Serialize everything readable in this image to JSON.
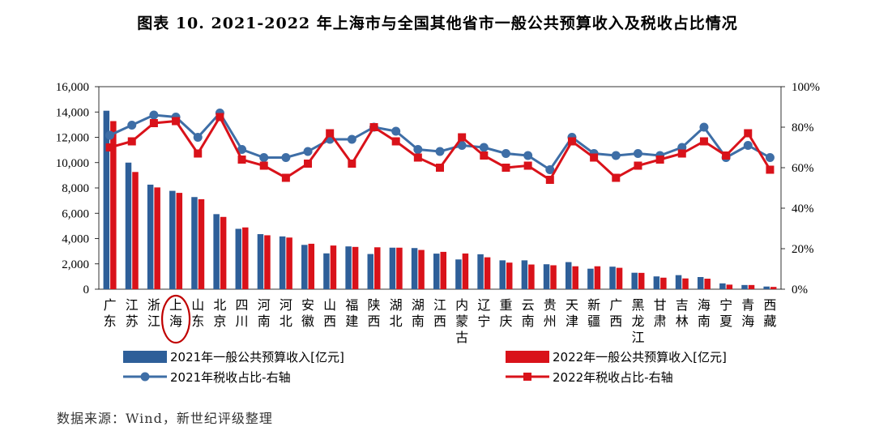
{
  "title": "图表 10. 2021-2022 年上海市与全国其他省市一般公共预算收入及税收占比情况",
  "source": "数据来源：Wind，新世纪评级整理",
  "colors": {
    "bar2021": "#2e5f99",
    "bar2022": "#d9121a",
    "line2021": "#3e6ea6",
    "line2022": "#d9121a",
    "highlight": "#c00000"
  },
  "chart_data": {
    "type": "bar",
    "categories": [
      "广东",
      "江苏",
      "浙江",
      "上海",
      "山东",
      "北京",
      "四川",
      "河南",
      "河北",
      "安徽",
      "山西",
      "福建",
      "陕西",
      "湖北",
      "湖南",
      "江西",
      "内蒙古",
      "辽宁",
      "重庆",
      "云南",
      "贵州",
      "天津",
      "新疆",
      "广西",
      "黑龙江",
      "甘肃",
      "吉林",
      "海南",
      "宁夏",
      "青海",
      "西藏"
    ],
    "highlight_category": "上海",
    "y_left": {
      "min": 0,
      "max": 16000,
      "ticks": [
        "0",
        "2,000",
        "4,000",
        "6,000",
        "8,000",
        "10,000",
        "12,000",
        "14,000",
        "16,000"
      ]
    },
    "y_right": {
      "min": 0,
      "max": 100,
      "ticks": [
        "0%",
        "20%",
        "40%",
        "60%",
        "80%",
        "100%"
      ]
    },
    "series": [
      {
        "name": "2021年一般公共预算收入[亿元]",
        "type": "bar",
        "axis": "left",
        "values": [
          14100,
          10000,
          8260,
          7770,
          7280,
          5930,
          4770,
          4350,
          4170,
          3500,
          2830,
          3380,
          2780,
          3280,
          3250,
          2810,
          2350,
          2760,
          2280,
          2280,
          1970,
          2140,
          1620,
          1780,
          1300,
          1010,
          1110,
          960,
          460,
          330,
          210
        ]
      },
      {
        "name": "2022年一般公共预算收入[亿元]",
        "type": "bar",
        "axis": "left",
        "values": [
          13280,
          9260,
          8040,
          7610,
          7110,
          5710,
          4880,
          4260,
          4080,
          3590,
          3450,
          3340,
          3310,
          3280,
          3100,
          2950,
          2820,
          2520,
          2100,
          1950,
          1890,
          1810,
          1810,
          1690,
          1290,
          910,
          850,
          830,
          360,
          330,
          180
        ]
      },
      {
        "name": "2021年税收占比-右轴",
        "type": "line",
        "axis": "right",
        "values": [
          76,
          81,
          86,
          85,
          75,
          87,
          69,
          65,
          65,
          68,
          74,
          74,
          80,
          78,
          69,
          68,
          71,
          70,
          67,
          66,
          59,
          75,
          67,
          66,
          67,
          66,
          70,
          80,
          65,
          71,
          65
        ]
      },
      {
        "name": "2022年税收占比-右轴",
        "type": "line",
        "axis": "right",
        "values": [
          70,
          73,
          82,
          83,
          67,
          85,
          64,
          61,
          55,
          62,
          77,
          62,
          80,
          73,
          65,
          60,
          75,
          66,
          60,
          61,
          54,
          73,
          65,
          55,
          61,
          64,
          67,
          73,
          66,
          77,
          59
        ]
      }
    ]
  }
}
